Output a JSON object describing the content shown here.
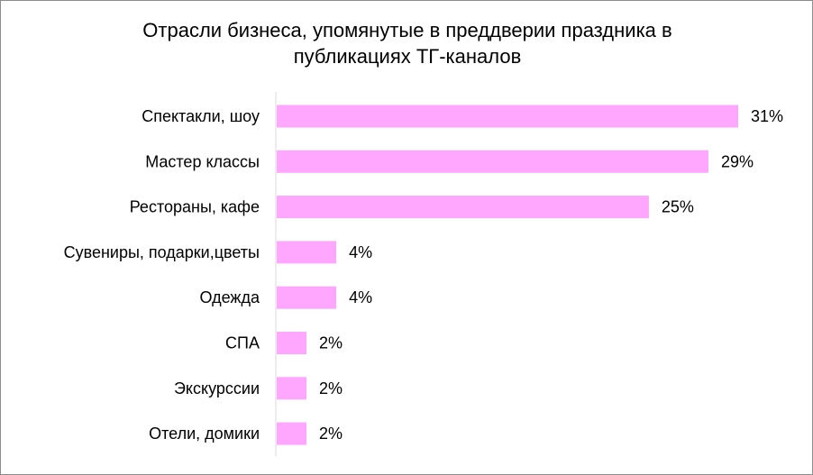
{
  "chart_data": {
    "type": "bar",
    "orientation": "horizontal",
    "title": "Отрасли бизнеса, упомянутые  в преддверии праздника в\nпубликациях ТГ-каналов",
    "categories": [
      "Спектакли, шоу",
      "Мастер классы",
      "Рестораны, кафе",
      "Сувениры, подарки,цветы",
      "Одежда",
      "СПА",
      "Экскурссии",
      "Отели, домики"
    ],
    "values": [
      31,
      29,
      25,
      4,
      4,
      2,
      2,
      2
    ],
    "data_labels": [
      "31%",
      "29%",
      "25%",
      "4%",
      "4%",
      "2%",
      "2%",
      "2%"
    ],
    "unit": "%",
    "xlim": [
      0,
      31
    ],
    "xlabel": "",
    "ylabel": "",
    "grid": false,
    "legend": "none",
    "bar_color": "#ffa6ff",
    "axis_color": "#d9d9d9"
  }
}
